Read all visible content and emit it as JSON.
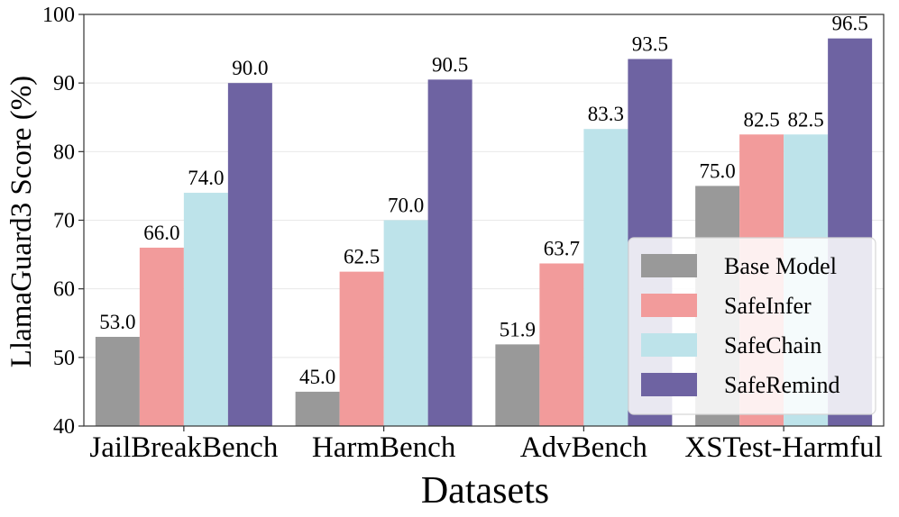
{
  "chart_data": {
    "type": "bar",
    "title": "",
    "xlabel": "Datasets",
    "ylabel": "LlamaGuard3 Score (%)",
    "ylim": [
      40,
      100
    ],
    "yticks": [
      40,
      50,
      60,
      70,
      80,
      90,
      100
    ],
    "grid": true,
    "legend_position": "lower-right",
    "categories": [
      "JailBreakBench",
      "HarmBench",
      "AdvBench",
      "XSTest-Harmful"
    ],
    "series": [
      {
        "name": "Base Model",
        "color": "#999999",
        "values": [
          53.0,
          45.0,
          51.9,
          75.0
        ],
        "labels": [
          "53.0",
          "45.0",
          "51.9",
          "75.0"
        ]
      },
      {
        "name": "SafeInfer",
        "color": "#f29b9b",
        "values": [
          66.0,
          62.5,
          63.7,
          82.5
        ],
        "labels": [
          "66.0",
          "62.5",
          "63.7",
          "82.5"
        ]
      },
      {
        "name": "SafeChain",
        "color": "#bde3ea",
        "values": [
          74.0,
          70.0,
          83.3,
          82.5
        ],
        "labels": [
          "74.0",
          "70.0",
          "83.3",
          "82.5"
        ]
      },
      {
        "name": "SafeRemind",
        "color": "#6e63a2",
        "values": [
          90.0,
          90.5,
          93.5,
          96.5
        ],
        "labels": [
          "90.0",
          "90.5",
          "93.5",
          "96.5"
        ]
      }
    ]
  }
}
